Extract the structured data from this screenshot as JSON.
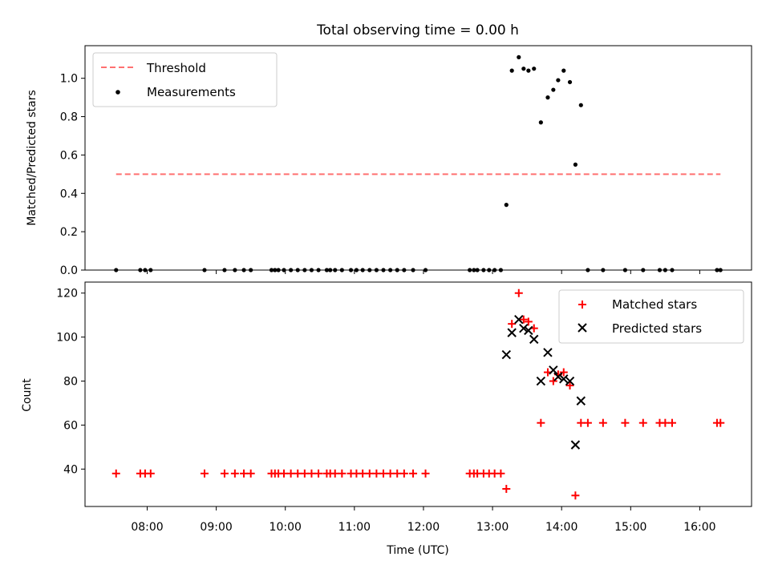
{
  "chart_data": [
    {
      "type": "scatter",
      "title": "Total observing time = 0.00 h",
      "xlabel": "",
      "ylabel": "Matched/Predicted stars",
      "xlim": [
        7.1,
        16.75
      ],
      "ylim": [
        0.0,
        1.17
      ],
      "yticks": [
        0.0,
        0.2,
        0.4,
        0.6,
        0.8,
        1.0
      ],
      "ytick_labels": [
        "0.0",
        "0.2",
        "0.4",
        "0.6",
        "0.8",
        "1.0"
      ],
      "legend_position": "upper-left",
      "threshold": {
        "name": "Threshold",
        "y": 0.5,
        "x": [
          7.55,
          16.3
        ],
        "color": "#ff7070"
      },
      "series": [
        {
          "name": "Measurements",
          "color": "#000000",
          "x": [
            7.55,
            7.9,
            7.97,
            8.05,
            8.83,
            9.12,
            9.27,
            9.4,
            9.5,
            9.8,
            9.85,
            9.9,
            9.98,
            10.08,
            10.18,
            10.28,
            10.38,
            10.48,
            10.6,
            10.65,
            10.72,
            10.82,
            10.95,
            11.03,
            11.12,
            11.22,
            11.32,
            11.42,
            11.52,
            11.62,
            11.72,
            11.85,
            12.03,
            12.67,
            12.73,
            12.78,
            12.87,
            12.95,
            13.03,
            13.12,
            13.2,
            13.28,
            13.38,
            13.45,
            13.52,
            13.6,
            13.7,
            13.8,
            13.88,
            13.95,
            14.03,
            14.12,
            14.2,
            14.28,
            14.38,
            14.6,
            14.92,
            15.18,
            15.42,
            15.5,
            15.6,
            16.25,
            16.3
          ],
          "y": [
            0,
            0,
            0,
            0,
            0,
            0,
            0,
            0,
            0,
            0,
            0,
            0,
            0,
            0,
            0,
            0,
            0,
            0,
            0,
            0,
            0,
            0,
            0,
            0,
            0,
            0,
            0,
            0,
            0,
            0,
            0,
            0,
            0,
            0,
            0,
            0,
            0,
            0,
            0,
            0,
            0.34,
            1.04,
            1.11,
            1.05,
            1.04,
            1.05,
            0.77,
            0.9,
            0.94,
            0.99,
            1.04,
            0.98,
            0.55,
            0.86,
            0,
            0,
            0,
            0,
            0,
            0,
            0,
            0,
            0
          ]
        }
      ]
    },
    {
      "type": "scatter",
      "title": "",
      "xlabel": "Time (UTC)",
      "ylabel": "Count",
      "xlim": [
        7.1,
        16.75
      ],
      "ylim": [
        23,
        125
      ],
      "yticks": [
        40,
        60,
        80,
        100,
        120
      ],
      "ytick_labels": [
        "40",
        "60",
        "80",
        "100",
        "120"
      ],
      "xticks": [
        8,
        9,
        10,
        11,
        12,
        13,
        14,
        15,
        16
      ],
      "xtick_labels": [
        "08:00",
        "09:00",
        "10:00",
        "11:00",
        "12:00",
        "13:00",
        "14:00",
        "15:00",
        "16:00"
      ],
      "legend_position": "upper-right",
      "series": [
        {
          "name": "Matched stars",
          "marker": "plus",
          "color": "#ff0000",
          "x": [
            7.55,
            7.9,
            7.97,
            8.05,
            8.83,
            9.12,
            9.27,
            9.4,
            9.5,
            9.8,
            9.85,
            9.9,
            9.98,
            10.08,
            10.18,
            10.28,
            10.38,
            10.48,
            10.6,
            10.65,
            10.72,
            10.82,
            10.95,
            11.03,
            11.12,
            11.22,
            11.32,
            11.42,
            11.52,
            11.62,
            11.72,
            11.85,
            12.03,
            12.67,
            12.73,
            12.78,
            12.87,
            12.95,
            13.03,
            13.12,
            13.2,
            13.28,
            13.38,
            13.45,
            13.52,
            13.6,
            13.7,
            13.8,
            13.88,
            13.95,
            14.03,
            14.12,
            14.2,
            14.28,
            14.38,
            14.6,
            14.92,
            15.18,
            15.42,
            15.5,
            15.6,
            16.25,
            16.3
          ],
          "y": [
            38,
            38,
            38,
            38,
            38,
            38,
            38,
            38,
            38,
            38,
            38,
            38,
            38,
            38,
            38,
            38,
            38,
            38,
            38,
            38,
            38,
            38,
            38,
            38,
            38,
            38,
            38,
            38,
            38,
            38,
            38,
            38,
            38,
            38,
            38,
            38,
            38,
            38,
            38,
            38,
            31,
            106,
            120,
            108,
            107,
            104,
            61,
            84,
            80,
            83,
            84,
            78,
            28,
            61,
            61,
            61,
            61,
            61,
            61,
            61,
            61,
            61,
            61
          ]
        },
        {
          "name": "Predicted stars",
          "marker": "x",
          "color": "#000000",
          "x": [
            13.2,
            13.28,
            13.38,
            13.45,
            13.52,
            13.6,
            13.7,
            13.8,
            13.88,
            13.95,
            14.03,
            14.12,
            14.2,
            14.28
          ],
          "y": [
            92,
            102,
            108,
            104,
            103,
            99,
            80,
            93,
            85,
            82,
            81,
            80,
            51,
            71
          ]
        }
      ]
    }
  ]
}
